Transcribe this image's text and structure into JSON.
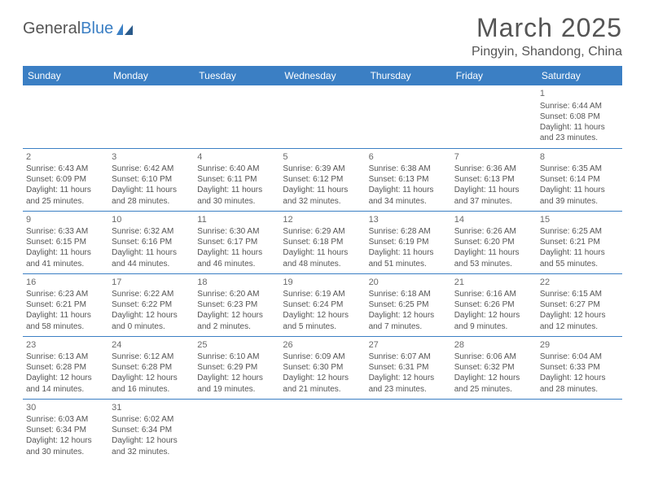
{
  "logo": {
    "text_gray": "General",
    "text_blue": "Blue"
  },
  "title": "March 2025",
  "location": "Pingyin, Shandong, China",
  "weekdays": [
    "Sunday",
    "Monday",
    "Tuesday",
    "Wednesday",
    "Thursday",
    "Friday",
    "Saturday"
  ],
  "colors": {
    "header_bg": "#3b7fc4",
    "header_text": "#ffffff",
    "border": "#3b7fc4",
    "text": "#555555"
  },
  "layout": {
    "first_weekday_index": 6,
    "days_in_month": 31
  },
  "days": {
    "1": {
      "sunrise": "6:44 AM",
      "sunset": "6:08 PM",
      "daylight": "11 hours and 23 minutes."
    },
    "2": {
      "sunrise": "6:43 AM",
      "sunset": "6:09 PM",
      "daylight": "11 hours and 25 minutes."
    },
    "3": {
      "sunrise": "6:42 AM",
      "sunset": "6:10 PM",
      "daylight": "11 hours and 28 minutes."
    },
    "4": {
      "sunrise": "6:40 AM",
      "sunset": "6:11 PM",
      "daylight": "11 hours and 30 minutes."
    },
    "5": {
      "sunrise": "6:39 AM",
      "sunset": "6:12 PM",
      "daylight": "11 hours and 32 minutes."
    },
    "6": {
      "sunrise": "6:38 AM",
      "sunset": "6:13 PM",
      "daylight": "11 hours and 34 minutes."
    },
    "7": {
      "sunrise": "6:36 AM",
      "sunset": "6:13 PM",
      "daylight": "11 hours and 37 minutes."
    },
    "8": {
      "sunrise": "6:35 AM",
      "sunset": "6:14 PM",
      "daylight": "11 hours and 39 minutes."
    },
    "9": {
      "sunrise": "6:33 AM",
      "sunset": "6:15 PM",
      "daylight": "11 hours and 41 minutes."
    },
    "10": {
      "sunrise": "6:32 AM",
      "sunset": "6:16 PM",
      "daylight": "11 hours and 44 minutes."
    },
    "11": {
      "sunrise": "6:30 AM",
      "sunset": "6:17 PM",
      "daylight": "11 hours and 46 minutes."
    },
    "12": {
      "sunrise": "6:29 AM",
      "sunset": "6:18 PM",
      "daylight": "11 hours and 48 minutes."
    },
    "13": {
      "sunrise": "6:28 AM",
      "sunset": "6:19 PM",
      "daylight": "11 hours and 51 minutes."
    },
    "14": {
      "sunrise": "6:26 AM",
      "sunset": "6:20 PM",
      "daylight": "11 hours and 53 minutes."
    },
    "15": {
      "sunrise": "6:25 AM",
      "sunset": "6:21 PM",
      "daylight": "11 hours and 55 minutes."
    },
    "16": {
      "sunrise": "6:23 AM",
      "sunset": "6:21 PM",
      "daylight": "11 hours and 58 minutes."
    },
    "17": {
      "sunrise": "6:22 AM",
      "sunset": "6:22 PM",
      "daylight": "12 hours and 0 minutes."
    },
    "18": {
      "sunrise": "6:20 AM",
      "sunset": "6:23 PM",
      "daylight": "12 hours and 2 minutes."
    },
    "19": {
      "sunrise": "6:19 AM",
      "sunset": "6:24 PM",
      "daylight": "12 hours and 5 minutes."
    },
    "20": {
      "sunrise": "6:18 AM",
      "sunset": "6:25 PM",
      "daylight": "12 hours and 7 minutes."
    },
    "21": {
      "sunrise": "6:16 AM",
      "sunset": "6:26 PM",
      "daylight": "12 hours and 9 minutes."
    },
    "22": {
      "sunrise": "6:15 AM",
      "sunset": "6:27 PM",
      "daylight": "12 hours and 12 minutes."
    },
    "23": {
      "sunrise": "6:13 AM",
      "sunset": "6:28 PM",
      "daylight": "12 hours and 14 minutes."
    },
    "24": {
      "sunrise": "6:12 AM",
      "sunset": "6:28 PM",
      "daylight": "12 hours and 16 minutes."
    },
    "25": {
      "sunrise": "6:10 AM",
      "sunset": "6:29 PM",
      "daylight": "12 hours and 19 minutes."
    },
    "26": {
      "sunrise": "6:09 AM",
      "sunset": "6:30 PM",
      "daylight": "12 hours and 21 minutes."
    },
    "27": {
      "sunrise": "6:07 AM",
      "sunset": "6:31 PM",
      "daylight": "12 hours and 23 minutes."
    },
    "28": {
      "sunrise": "6:06 AM",
      "sunset": "6:32 PM",
      "daylight": "12 hours and 25 minutes."
    },
    "29": {
      "sunrise": "6:04 AM",
      "sunset": "6:33 PM",
      "daylight": "12 hours and 28 minutes."
    },
    "30": {
      "sunrise": "6:03 AM",
      "sunset": "6:34 PM",
      "daylight": "12 hours and 30 minutes."
    },
    "31": {
      "sunrise": "6:02 AM",
      "sunset": "6:34 PM",
      "daylight": "12 hours and 32 minutes."
    }
  },
  "labels": {
    "sunrise": "Sunrise: ",
    "sunset": "Sunset: ",
    "daylight": "Daylight: "
  }
}
